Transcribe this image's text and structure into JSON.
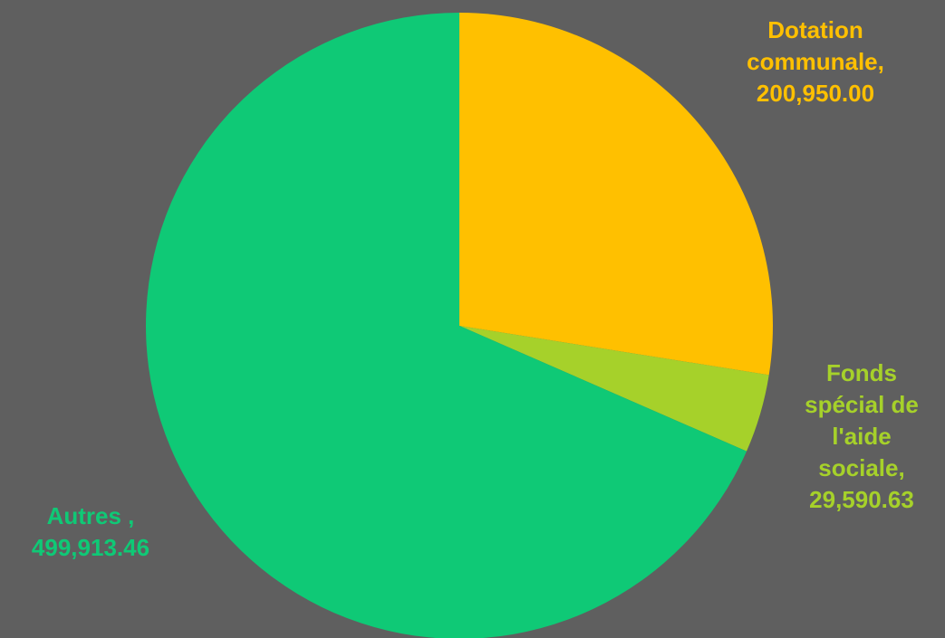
{
  "chart_data": {
    "type": "pie",
    "series": [
      {
        "name": "Dotation communale",
        "value": 200950.0,
        "label": "Dotation\ncommunale,\n200,950.00",
        "color": "#ffc000"
      },
      {
        "name": "Fonds spécial de l'aide sociale",
        "value": 29590.63,
        "label": "Fonds\nspécial de\nl'aide\nsociale,\n29,590.63",
        "color": "#a6d12a"
      },
      {
        "name": "Autres",
        "value": 499913.46,
        "label": "Autres ,\n499,913.46",
        "color": "#0fc976"
      }
    ],
    "start_angle_deg": 0,
    "direction": "clockwise",
    "legend": "none"
  },
  "colors": {
    "background": "#5f5f5f"
  }
}
